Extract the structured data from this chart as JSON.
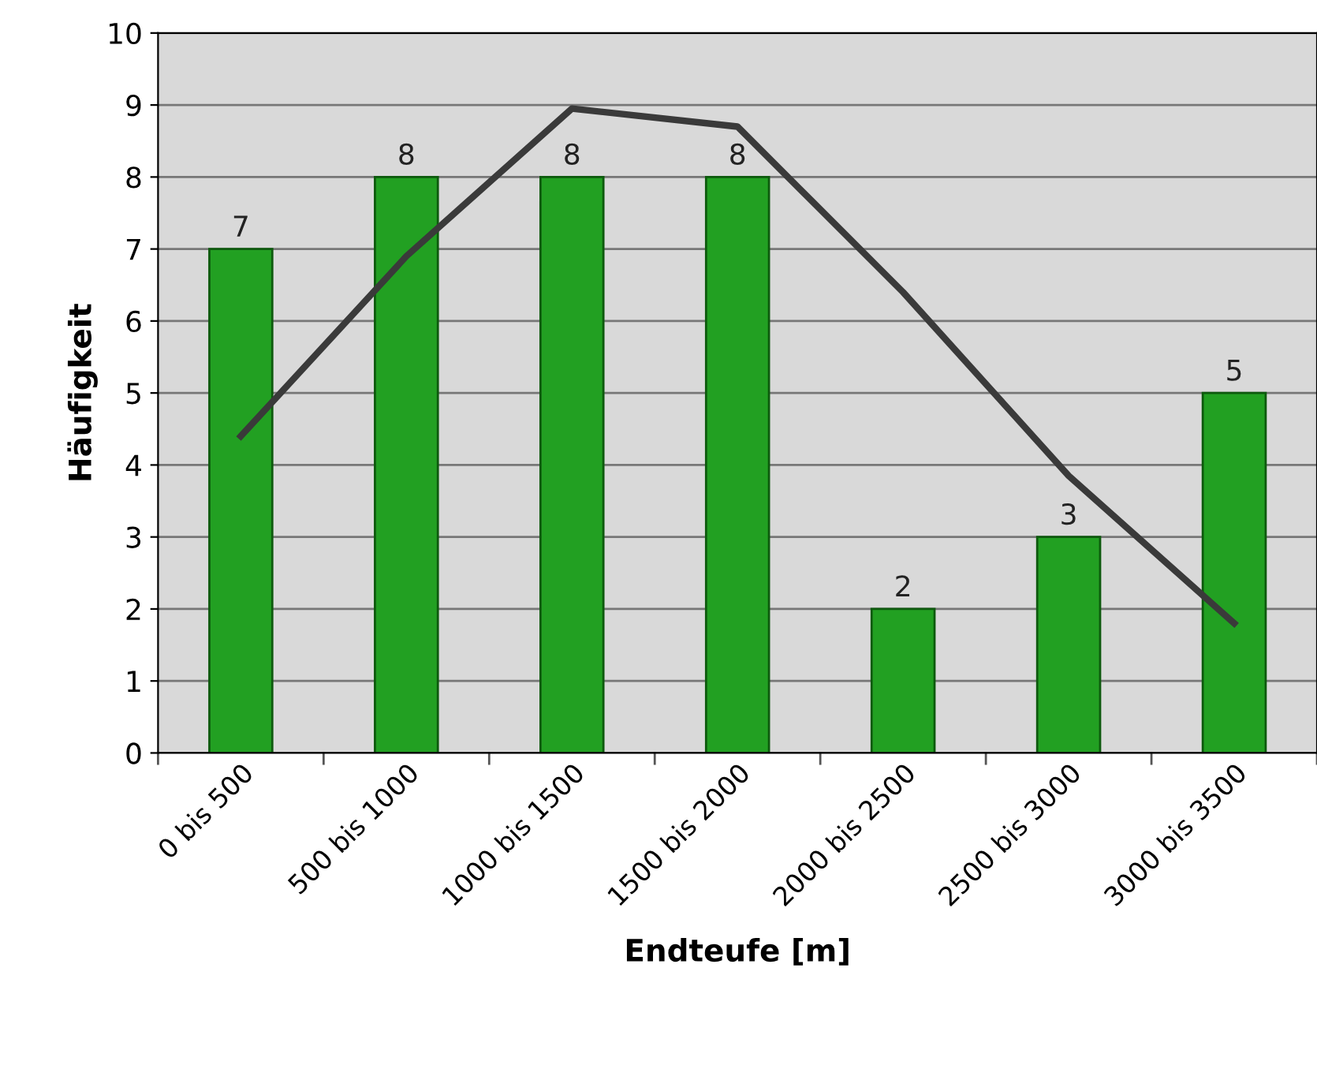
{
  "chart_data": {
    "type": "bar",
    "xlabel": "Endteufe [m]",
    "ylabel": "Häufigkeit",
    "categories": [
      "0 bis 500",
      "500 bis 1000",
      "1000 bis 1500",
      "1500 bis 2000",
      "2000 bis 2500",
      "2500 bis 3000",
      "3000 bis 3500"
    ],
    "series": [
      {
        "color": "#22a022",
        "values": [
          7,
          8,
          8,
          8,
          2,
          3,
          5
        ],
        "value_labels": [
          "7",
          "8",
          "8",
          "8",
          "2",
          "3",
          "5"
        ]
      },
      {
        "type": "line",
        "color": "#3a3a3a",
        "values": [
          4.4,
          6.9,
          8.95,
          8.7,
          6.4,
          3.85,
          1.8
        ]
      }
    ],
    "ylim": [
      0,
      10
    ],
    "yticks": [
      0,
      1,
      2,
      3,
      4,
      5,
      6,
      7,
      8,
      9,
      10
    ],
    "grid": "y",
    "line_style": "solid",
    "marker": "none"
  }
}
